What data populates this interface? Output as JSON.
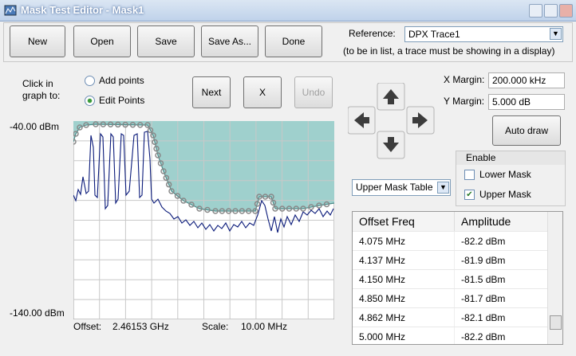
{
  "window": {
    "title": "Mask Test Editor - Mask1"
  },
  "toolbar": {
    "buttons": [
      "New",
      "Open",
      "Save",
      "Save As...",
      "Done"
    ],
    "reference_label": "Reference:",
    "reference_value": "DPX Trace1",
    "reference_note": "(to be in list, a trace must be showing in a display)"
  },
  "click_mode": {
    "label": "Click in graph to:",
    "options": [
      "Add points",
      "Edit Points"
    ]
  },
  "edit_buttons": [
    "Next",
    "X",
    "Undo"
  ],
  "margins": {
    "x_label": "X Margin:",
    "x_value": "200.000 kHz",
    "y_label": "Y Margin:",
    "y_value": "5.000 dB"
  },
  "auto_draw": "Auto draw",
  "enable": {
    "title": "Enable",
    "options": [
      "Lower Mask",
      "Upper Mask"
    ]
  },
  "table_select": "Upper Mask Table",
  "table": {
    "columns": [
      "Offset Freq",
      "Amplitude"
    ],
    "rows": [
      [
        "4.075 MHz",
        "-82.2 dBm"
      ],
      [
        "4.137 MHz",
        "-81.9 dBm"
      ],
      [
        "4.150 MHz",
        "-81.5 dBm"
      ],
      [
        "4.850 MHz",
        "-81.7 dBm"
      ],
      [
        "4.862 MHz",
        "-82.1 dBm"
      ],
      [
        "5.000 MHz",
        "-82.2 dBm"
      ]
    ]
  },
  "graph": {
    "y_top": "-40.00 dBm",
    "y_bottom": "-140.00 dBm",
    "offset_label": "Offset:",
    "offset_value": "2.46153 GHz",
    "scale_label": "Scale:",
    "scale_value": "10.00 MHz"
  }
}
